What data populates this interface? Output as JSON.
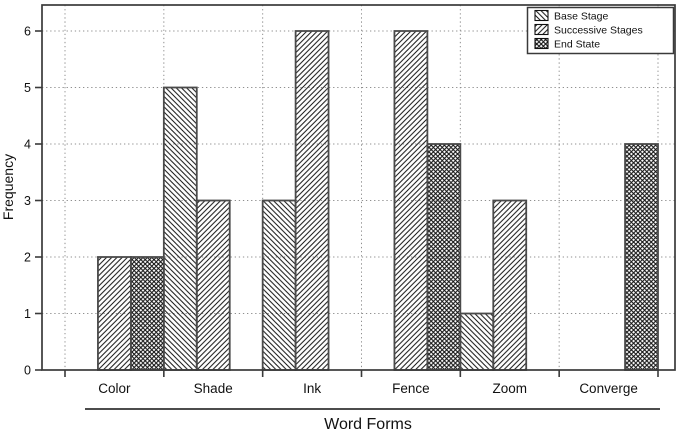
{
  "chart_data": {
    "type": "bar",
    "title": "",
    "xlabel": "Word Forms",
    "ylabel": "Frequency",
    "categories": [
      "Color",
      "Shade",
      "Ink",
      "Fence",
      "Zoom",
      "Converge"
    ],
    "series": [
      {
        "name": "Base Stage",
        "pattern": "diagonal-back",
        "values": [
          null,
          5,
          3,
          null,
          1,
          null
        ]
      },
      {
        "name": "Successive Stages",
        "pattern": "diagonal-fwd",
        "values": [
          2,
          3,
          6,
          6,
          3,
          null
        ]
      },
      {
        "name": "End State",
        "pattern": "crosshatch",
        "values": [
          2,
          null,
          null,
          4,
          null,
          4
        ]
      }
    ],
    "yticks": [
      0,
      1,
      2,
      3,
      4,
      5,
      6
    ],
    "ylim": [
      0,
      6.45
    ],
    "grid": "dotted",
    "legend_position": "top-right",
    "colors": {
      "bar_fill": "#ffffff",
      "bar_stroke": "#4a4a4a",
      "hatch": "#111111",
      "frame": "#3a3a3a",
      "gridline": "#8f8f8f",
      "text": "#111111"
    }
  }
}
